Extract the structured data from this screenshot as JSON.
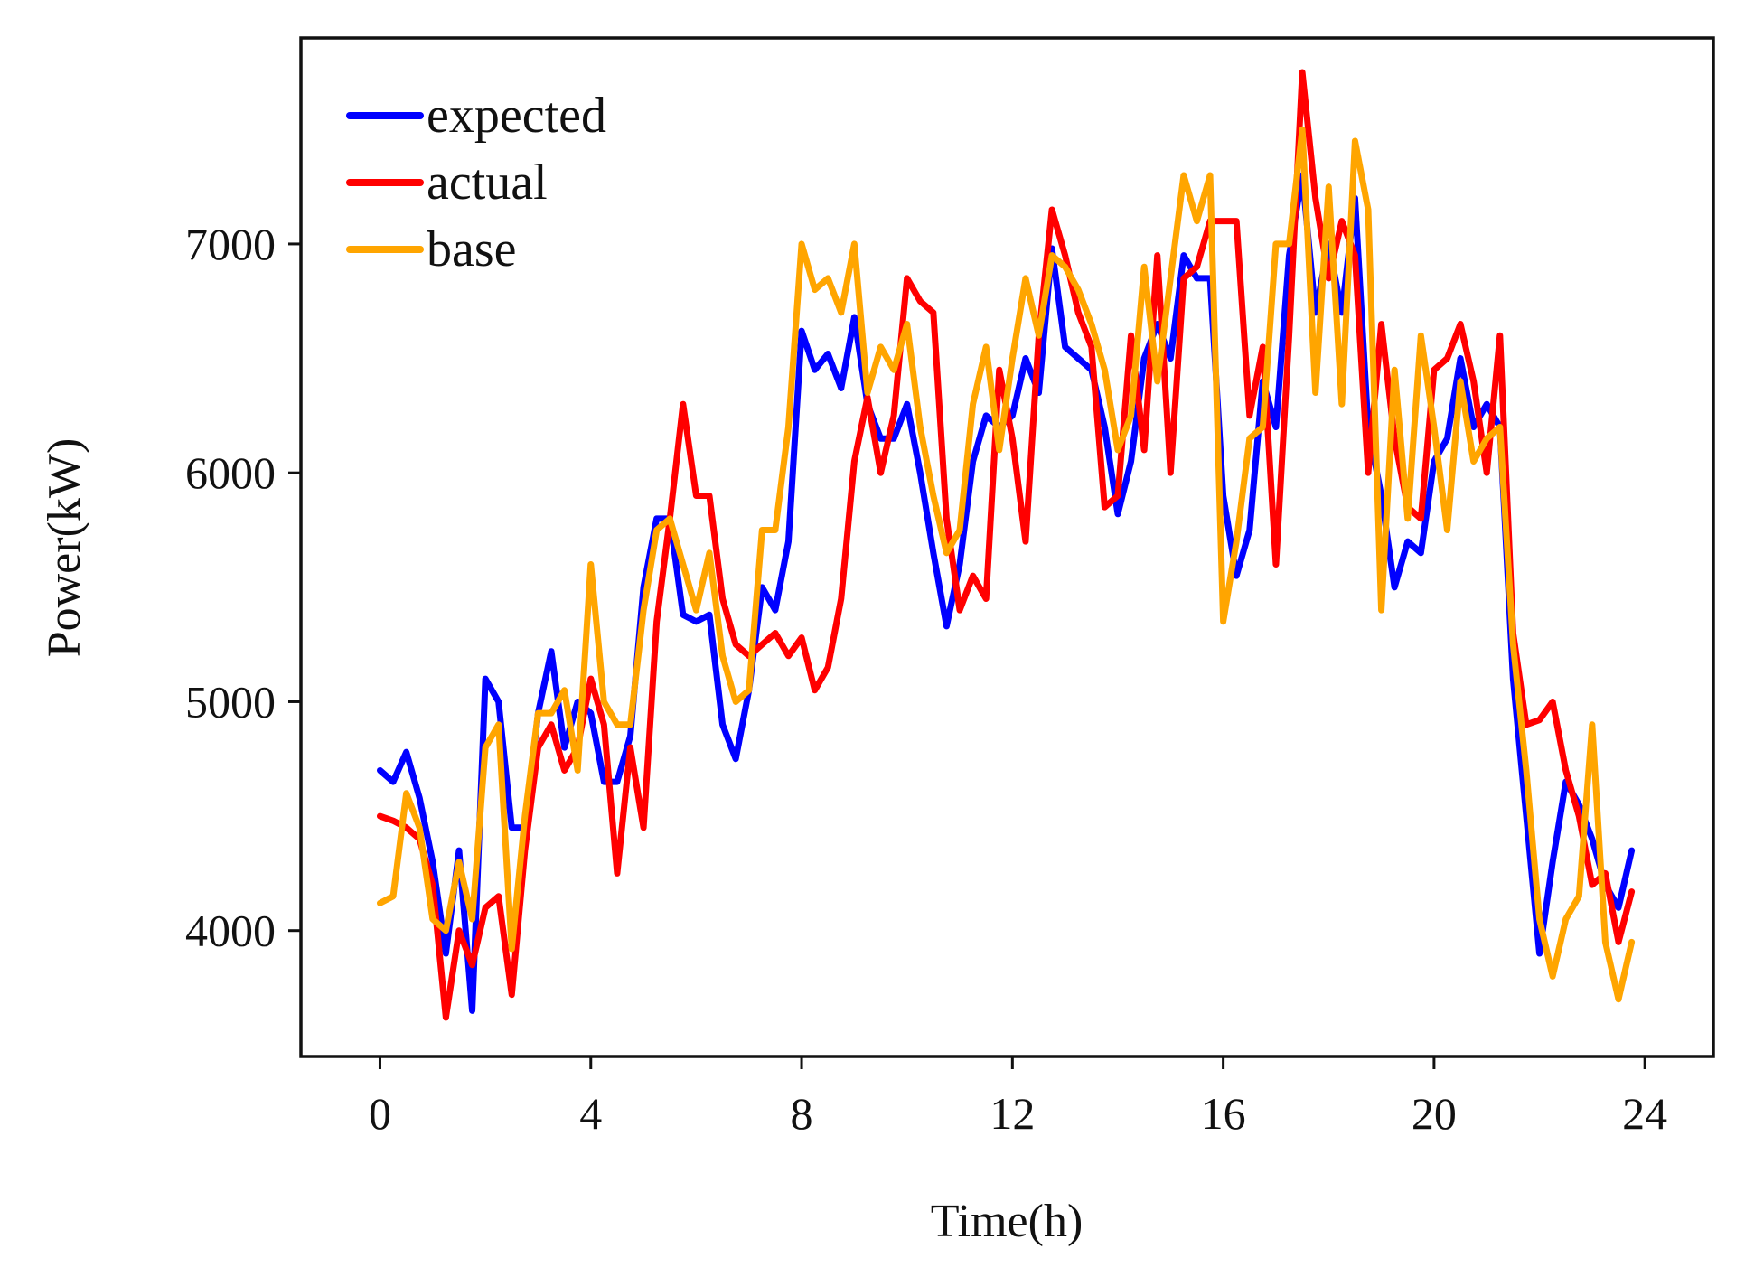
{
  "colors": {
    "expected": "#0000ff",
    "actual": "#ff0000",
    "base": "#ffa500",
    "axis": "#111111",
    "background": "#ffffff"
  },
  "chart_data": {
    "type": "line",
    "title": "",
    "xlabel": "Time(h)",
    "ylabel": "Power(kW)",
    "xlim": [
      -1.5,
      25.3
    ],
    "ylim": [
      3450,
      7900
    ],
    "xticks": [
      0,
      4,
      8,
      12,
      16,
      20,
      24
    ],
    "xtick_labels": [
      "0",
      "4",
      "8",
      "12",
      "16",
      "20",
      "24"
    ],
    "yticks": [
      4000,
      5000,
      6000,
      7000
    ],
    "ytick_labels": [
      "4000",
      "5000",
      "6000",
      "7000"
    ],
    "grid": false,
    "legend_position": "top-left",
    "x": [
      0,
      0.25,
      0.5,
      0.75,
      1,
      1.25,
      1.5,
      1.75,
      2,
      2.25,
      2.5,
      2.75,
      3,
      3.25,
      3.5,
      3.75,
      4,
      4.25,
      4.5,
      4.75,
      5,
      5.25,
      5.5,
      5.75,
      6,
      6.25,
      6.5,
      6.75,
      7,
      7.25,
      7.5,
      7.75,
      8,
      8.25,
      8.5,
      8.75,
      9,
      9.25,
      9.5,
      9.75,
      10,
      10.25,
      10.5,
      10.75,
      11,
      11.25,
      11.5,
      11.75,
      12,
      12.25,
      12.5,
      12.75,
      13,
      13.25,
      13.5,
      13.75,
      14,
      14.25,
      14.5,
      14.75,
      15,
      15.25,
      15.5,
      15.75,
      16,
      16.25,
      16.5,
      16.75,
      17,
      17.25,
      17.5,
      17.75,
      18,
      18.25,
      18.5,
      18.75,
      19,
      19.25,
      19.5,
      19.75,
      20,
      20.25,
      20.5,
      20.75,
      21,
      21.25,
      21.5,
      21.75,
      22,
      22.25,
      22.5,
      22.75,
      23,
      23.25,
      23.5,
      23.75
    ],
    "series": [
      {
        "name": "expected",
        "color": "#0000ff",
        "values": [
          4700,
          4650,
          4780,
          4580,
          4300,
          3900,
          4350,
          3650,
          5100,
          5000,
          4450,
          4450,
          4950,
          5220,
          4800,
          5000,
          4950,
          4650,
          4650,
          4850,
          5500,
          5800,
          5800,
          5380,
          5350,
          5380,
          4900,
          4750,
          5050,
          5500,
          5400,
          5700,
          6620,
          6450,
          6520,
          6370,
          6680,
          6300,
          6150,
          6150,
          6300,
          6000,
          5650,
          5330,
          5600,
          6050,
          6250,
          6200,
          6250,
          6500,
          6350,
          6980,
          6550,
          6500,
          6450,
          6200,
          5820,
          6050,
          6500,
          6650,
          6500,
          6950,
          6850,
          6850,
          5900,
          5550,
          5750,
          6400,
          6200,
          6950,
          7300,
          6700,
          7000,
          6700,
          7200,
          6200,
          5900,
          5500,
          5700,
          5650,
          6050,
          6150,
          6500,
          6200,
          6300,
          6200,
          5100,
          4500,
          3900,
          4300,
          4650,
          4550,
          4400,
          4200,
          4100,
          4350
        ]
      },
      {
        "name": "actual",
        "color": "#ff0000",
        "values": [
          4500,
          4480,
          4450,
          4400,
          4200,
          3620,
          4000,
          3850,
          4100,
          4150,
          3720,
          4350,
          4800,
          4900,
          4700,
          4800,
          5100,
          4900,
          4250,
          4800,
          4450,
          5350,
          5800,
          6300,
          5900,
          5900,
          5450,
          5250,
          5200,
          5250,
          5300,
          5200,
          5280,
          5050,
          5150,
          5450,
          6050,
          6330,
          6000,
          6250,
          6850,
          6750,
          6700,
          5800,
          5400,
          5550,
          5450,
          6450,
          6150,
          5700,
          6600,
          7150,
          6950,
          6700,
          6550,
          5850,
          5900,
          6600,
          6100,
          6950,
          6000,
          6850,
          6900,
          7100,
          7100,
          7100,
          6250,
          6550,
          5600,
          6600,
          7750,
          7200,
          6850,
          7100,
          6950,
          6000,
          6650,
          6150,
          5850,
          5800,
          6450,
          6500,
          6650,
          6400,
          6000,
          6600,
          5300,
          4900,
          4920,
          5000,
          4700,
          4500,
          4200,
          4250,
          3950,
          4170
        ]
      },
      {
        "name": "base",
        "color": "#ffa500",
        "values": [
          4120,
          4150,
          4600,
          4450,
          4050,
          4000,
          4300,
          4050,
          4800,
          4900,
          3920,
          4500,
          4950,
          4950,
          5050,
          4700,
          5600,
          5000,
          4900,
          4900,
          5400,
          5750,
          5800,
          5600,
          5400,
          5650,
          5200,
          5000,
          5050,
          5750,
          5750,
          6200,
          7000,
          6800,
          6850,
          6700,
          7000,
          6350,
          6550,
          6450,
          6650,
          6200,
          5900,
          5650,
          5750,
          6300,
          6550,
          6100,
          6500,
          6850,
          6600,
          6950,
          6900,
          6800,
          6650,
          6450,
          6100,
          6250,
          6900,
          6400,
          6850,
          7300,
          7100,
          7300,
          5350,
          5700,
          6150,
          6200,
          7000,
          7000,
          7500,
          6350,
          7250,
          6300,
          7450,
          7150,
          5400,
          6450,
          5800,
          6600,
          6200,
          5750,
          6400,
          6050,
          6150,
          6200,
          5250,
          4700,
          4050,
          3800,
          4050,
          4150,
          4900,
          3950,
          3700,
          3950
        ]
      }
    ]
  }
}
